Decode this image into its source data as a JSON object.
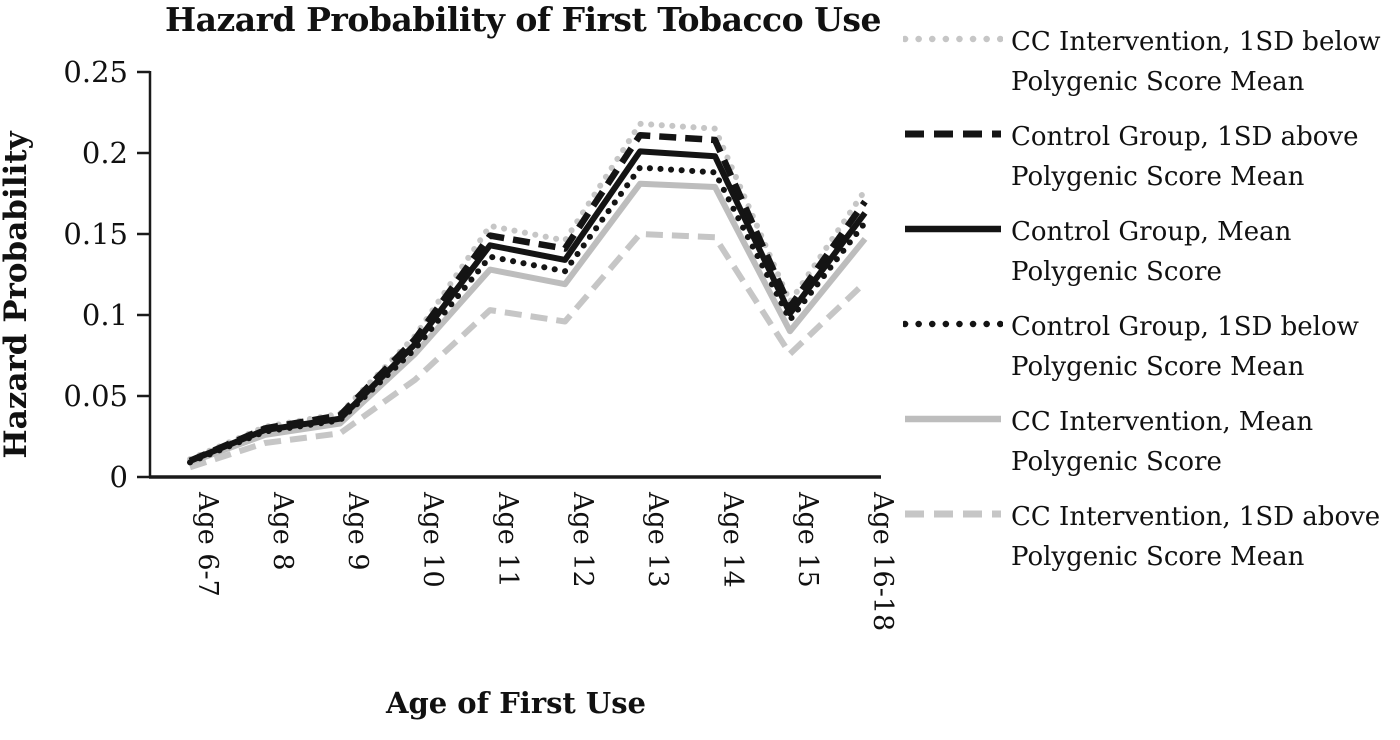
{
  "title": "Hazard Probability of First Tobacco Use",
  "x_axis_title": "Age of First Use",
  "y_axis_title": "Hazard Probability",
  "colors": {
    "black": "#141414",
    "gray_solid": "#bdbdbd",
    "gray_light": "#c6c6c6",
    "axis": "#1a1a1a",
    "background": "#ffffff"
  },
  "chart_data": {
    "type": "line",
    "title": "Hazard Probability of First Tobacco Use",
    "xlabel": "Age of First Use",
    "ylabel": "Hazard Probability",
    "ylim": [
      0,
      0.25
    ],
    "yticks": [
      0,
      0.05,
      0.1,
      0.15,
      0.2,
      0.25
    ],
    "ytick_labels": [
      "0",
      "0.05",
      "0.1",
      "0.15",
      "0.2",
      "0.25"
    ],
    "grid": false,
    "legend_position": "right",
    "x_tick_rotation_deg": 90,
    "categories": [
      "Age 6-7",
      "Age 8",
      "Age 9",
      "Age 10",
      "Age 11",
      "Age 12",
      "Age 13",
      "Age 14",
      "Age 15",
      "Age 16-18"
    ],
    "series": [
      {
        "name": "CC Intervention, 1SD below Polygenic Score Mean",
        "color": "#c6c6c6",
        "style": "dotted",
        "values": [
          0.011,
          0.031,
          0.039,
          0.087,
          0.155,
          0.146,
          0.218,
          0.215,
          0.108,
          0.177
        ]
      },
      {
        "name": "Control Group, 1SD above Polygenic Score Mean",
        "color": "#141414",
        "style": "dashed",
        "values": [
          0.01,
          0.03,
          0.038,
          0.085,
          0.149,
          0.141,
          0.211,
          0.208,
          0.105,
          0.17
        ]
      },
      {
        "name": "Control Group, Mean Polygenic Score",
        "color": "#141414",
        "style": "solid",
        "values": [
          0.01,
          0.029,
          0.036,
          0.082,
          0.143,
          0.134,
          0.201,
          0.198,
          0.101,
          0.163
        ]
      },
      {
        "name": "Control Group, 1SD below Polygenic Score Mean",
        "color": "#141414",
        "style": "dotted",
        "values": [
          0.009,
          0.028,
          0.035,
          0.079,
          0.136,
          0.127,
          0.191,
          0.188,
          0.097,
          0.157
        ]
      },
      {
        "name": "CC Intervention, Mean Polygenic Score",
        "color": "#bdbdbd",
        "style": "solid",
        "values": [
          0.009,
          0.026,
          0.033,
          0.076,
          0.128,
          0.119,
          0.181,
          0.179,
          0.09,
          0.147
        ]
      },
      {
        "name": "CC Intervention, 1SD above Polygenic Score Mean",
        "color": "#c6c6c6",
        "style": "dashed",
        "values": [
          0.006,
          0.021,
          0.027,
          0.06,
          0.103,
          0.096,
          0.15,
          0.148,
          0.076,
          0.12
        ]
      }
    ]
  }
}
